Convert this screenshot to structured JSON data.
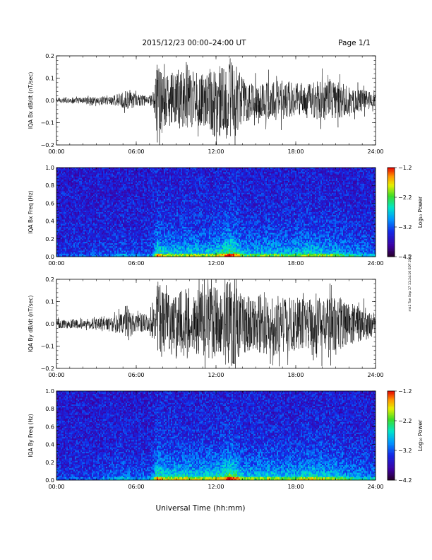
{
  "header": {
    "title": "2015/12/23  00:00–24:00 UT",
    "page": "Page 1/1"
  },
  "footer": {
    "xlabel": "Universal Time (hh:mm)",
    "stamp": "mk1 Tue Sep 17 11:24:16 EDT 2019"
  },
  "chart_data": [
    {
      "type": "line",
      "ylabel": "IQA Bx dB/dt (nT/sec)",
      "xlim": [
        0,
        24
      ],
      "ylim": [
        -0.2,
        0.2
      ],
      "x_ticks": [
        "00:00",
        "06:00",
        "12:00",
        "18:00",
        "24:00"
      ],
      "y_ticks": [
        "0.2",
        "0.1",
        "0.0",
        "−0.1",
        "−0.2"
      ],
      "envelope": {
        "x_hours": [
          0,
          2,
          4,
          5,
          5.5,
          6,
          7,
          7.4,
          7.6,
          8,
          9,
          10,
          11,
          12,
          12.5,
          13,
          13.5,
          14,
          15,
          16,
          17,
          18,
          19,
          20,
          21,
          22,
          23,
          24
        ],
        "amplitude": [
          0.012,
          0.014,
          0.02,
          0.035,
          0.04,
          0.03,
          0.02,
          0.05,
          0.21,
          0.11,
          0.13,
          0.14,
          0.12,
          0.17,
          0.15,
          0.2,
          0.16,
          0.1,
          0.08,
          0.09,
          0.09,
          0.08,
          0.08,
          0.09,
          0.09,
          0.06,
          0.05,
          0.03
        ]
      }
    },
    {
      "type": "heatmap",
      "ylabel": "IQA Bx Freq (Hz)",
      "colorbar_label": "Log₁₀ Power",
      "xlim": [
        0,
        24
      ],
      "ylim": [
        0,
        1.0
      ],
      "clim": [
        -4.2,
        -1.2
      ],
      "x_ticks": [
        "00:00",
        "06:00",
        "12:00",
        "18:00",
        "24:00"
      ],
      "y_ticks": [
        "1.0",
        "0.8",
        "0.6",
        "0.4",
        "0.2",
        "0.0"
      ],
      "colorbar_ticks": [
        "−1.2",
        "−2.2",
        "−3.2",
        "−4.2"
      ],
      "activity": {
        "x_hours": [
          0,
          3,
          5,
          6,
          7.2,
          7.6,
          8,
          9,
          10,
          11,
          12,
          12.5,
          13,
          13.5,
          14,
          15,
          16,
          17,
          18,
          19,
          20,
          21,
          22,
          23,
          24
        ],
        "level": [
          0.1,
          0.12,
          0.22,
          0.15,
          0.2,
          0.7,
          0.55,
          0.5,
          0.55,
          0.5,
          0.55,
          0.65,
          0.85,
          0.7,
          0.45,
          0.45,
          0.5,
          0.45,
          0.45,
          0.55,
          0.5,
          0.45,
          0.35,
          0.3,
          0.25
        ]
      }
    },
    {
      "type": "line",
      "ylabel": "IQA By dB/dt (nT/sec)",
      "xlim": [
        0,
        24
      ],
      "ylim": [
        -0.2,
        0.2
      ],
      "x_ticks": [
        "00:00",
        "06:00",
        "12:00",
        "18:00",
        "24:00"
      ],
      "y_ticks": [
        "0.2",
        "0.1",
        "0.0",
        "−0.1",
        "−0.2"
      ],
      "envelope": {
        "x_hours": [
          0,
          2,
          4,
          5,
          5.5,
          6,
          7,
          7.4,
          7.6,
          8,
          9,
          10,
          11,
          12,
          12.5,
          13,
          13.5,
          14,
          15,
          16,
          17,
          18,
          19,
          20,
          21,
          22,
          23,
          24
        ],
        "amplitude": [
          0.02,
          0.022,
          0.03,
          0.05,
          0.07,
          0.04,
          0.05,
          0.08,
          0.21,
          0.14,
          0.15,
          0.16,
          0.15,
          0.17,
          0.16,
          0.2,
          0.18,
          0.13,
          0.13,
          0.15,
          0.13,
          0.12,
          0.11,
          0.12,
          0.12,
          0.1,
          0.08,
          0.05
        ]
      }
    },
    {
      "type": "heatmap",
      "ylabel": "IQA By Freq (Hz)",
      "colorbar_label": "Log₁₀ Power",
      "xlim": [
        0,
        24
      ],
      "ylim": [
        0,
        1.0
      ],
      "clim": [
        -4.2,
        -1.2
      ],
      "x_ticks": [
        "00:00",
        "06:00",
        "12:00",
        "18:00",
        "24:00"
      ],
      "y_ticks": [
        "1.0",
        "0.8",
        "0.6",
        "0.4",
        "0.2",
        "0.0"
      ],
      "colorbar_ticks": [
        "−1.2",
        "−2.2",
        "−3.2",
        "−4.2"
      ],
      "activity": {
        "x_hours": [
          0,
          3,
          5,
          6,
          7.2,
          7.6,
          8,
          9,
          10,
          11,
          12,
          12.5,
          13,
          13.5,
          14,
          15,
          16,
          17,
          18,
          19,
          20,
          21,
          22,
          23,
          24
        ],
        "level": [
          0.12,
          0.14,
          0.28,
          0.18,
          0.25,
          0.75,
          0.6,
          0.55,
          0.6,
          0.55,
          0.6,
          0.7,
          0.9,
          0.75,
          0.5,
          0.5,
          0.55,
          0.5,
          0.5,
          0.6,
          0.55,
          0.5,
          0.4,
          0.35,
          0.3
        ]
      }
    }
  ]
}
